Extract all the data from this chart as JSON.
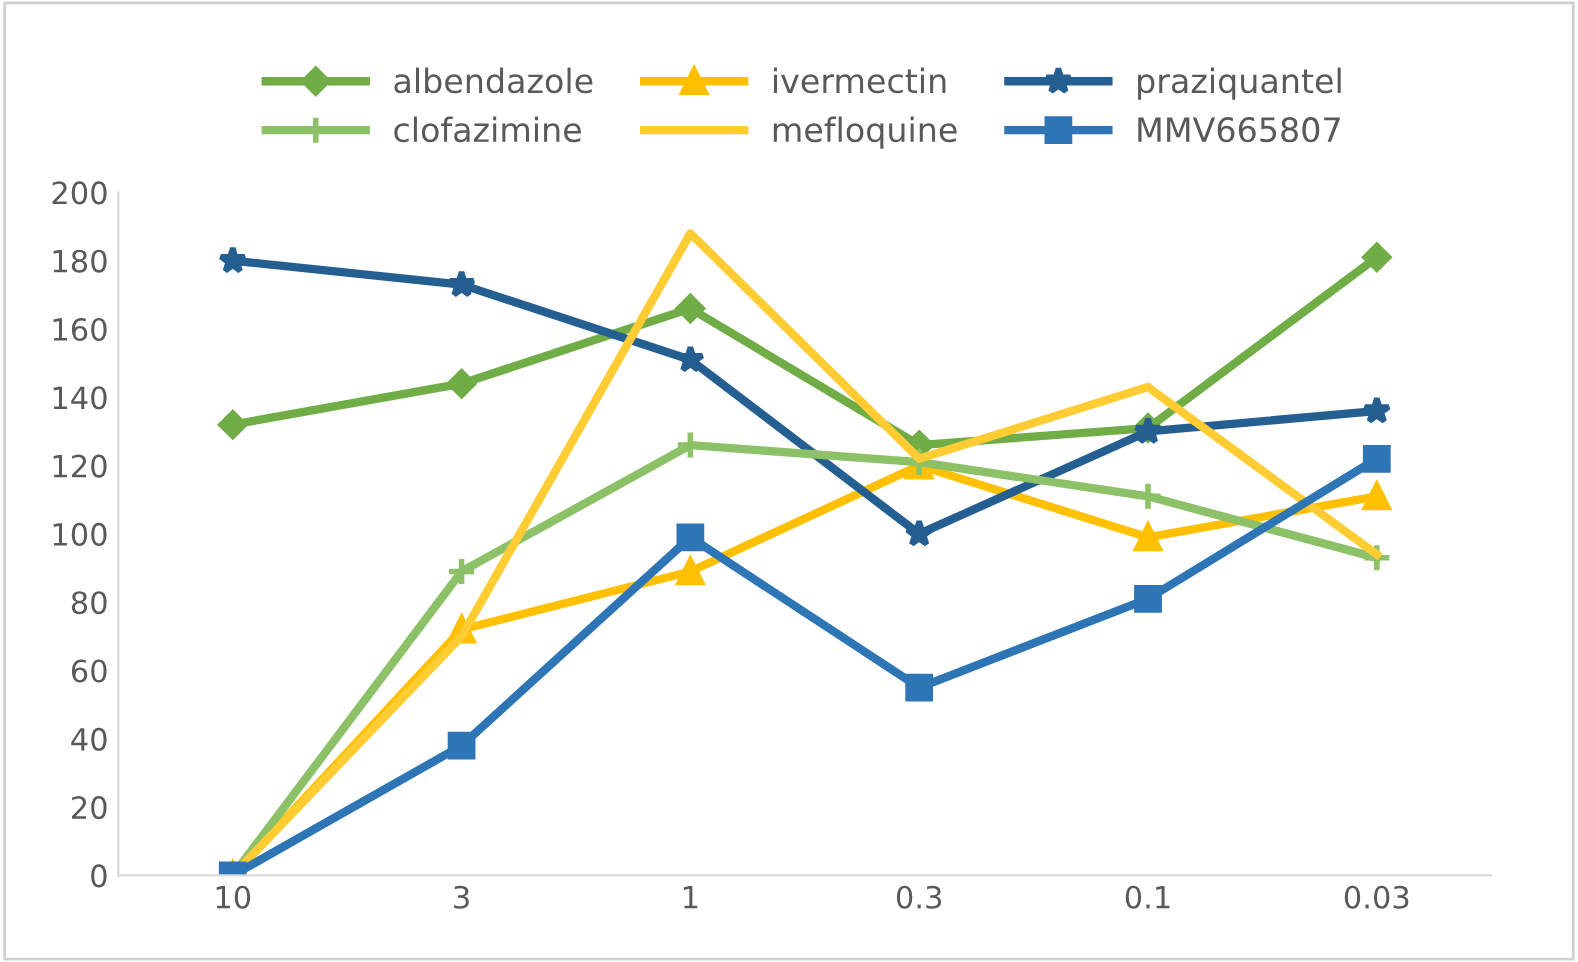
{
  "chart_data": {
    "type": "line",
    "categories": [
      "10",
      "3",
      "1",
      "0.3",
      "0.1",
      "0.03"
    ],
    "ylim": [
      0,
      200
    ],
    "yticks": [
      0,
      20,
      40,
      60,
      80,
      100,
      120,
      140,
      160,
      180,
      200
    ],
    "grid": false,
    "legend": "top",
    "line_style": "solid",
    "series": [
      {
        "name": "albendazole",
        "color": "#70ad47",
        "marker": "diamond",
        "values": [
          132,
          144,
          166,
          126,
          131,
          181
        ]
      },
      {
        "name": "ivermectin",
        "color": "#ffc000",
        "marker": "triangle",
        "values": [
          0,
          72,
          89,
          120,
          99,
          111
        ]
      },
      {
        "name": "praziquantel",
        "color": "#255e91",
        "marker": "star",
        "values": [
          180,
          173,
          151,
          100,
          130,
          136
        ]
      },
      {
        "name": "clofazimine",
        "color": "#8cc168",
        "marker": "cross",
        "values": [
          0,
          89,
          126,
          121,
          111,
          93
        ]
      },
      {
        "name": "mefloquine",
        "color": "#ffcd33",
        "marker": "none",
        "values": [
          0,
          70,
          188,
          122,
          143,
          94
        ]
      },
      {
        "name": "MMV665807",
        "color": "#2e75b6",
        "marker": "square",
        "values": [
          0,
          38,
          99,
          55,
          81,
          122
        ]
      }
    ]
  }
}
